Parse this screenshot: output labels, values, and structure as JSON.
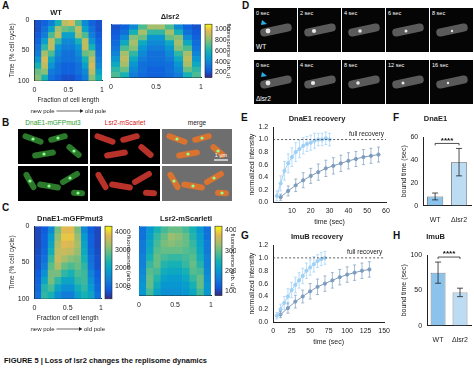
{
  "chart_data": [
    {
      "panel": "A",
      "type": "heatmap",
      "x": [
        0.05,
        0.15,
        0.25,
        0.35,
        0.45,
        0.55,
        0.65,
        0.75,
        0.85,
        0.95
      ],
      "y": [
        5,
        15,
        25,
        35,
        45,
        55,
        65,
        75,
        85,
        95
      ],
      "series": [
        {
          "name": "WT",
          "values": [
            [
              200,
              250,
              350,
              600,
              900,
              950,
              700,
              400,
              250,
              200
            ],
            [
              200,
              300,
              500,
              850,
              750,
              700,
              900,
              500,
              300,
              200
            ],
            [
              220,
              350,
              700,
              900,
              500,
              500,
              850,
              700,
              350,
              220
            ],
            [
              250,
              500,
              900,
              650,
              400,
              400,
              600,
              900,
              450,
              250
            ],
            [
              300,
              650,
              900,
              450,
              350,
              350,
              450,
              900,
              600,
              280
            ],
            [
              350,
              850,
              700,
              400,
              300,
              300,
              400,
              750,
              800,
              300
            ],
            [
              450,
              950,
              550,
              350,
              300,
              300,
              350,
              600,
              900,
              350
            ],
            [
              600,
              900,
              450,
              300,
              250,
              250,
              300,
              500,
              950,
              400
            ],
            [
              750,
              800,
              350,
              300,
              250,
              250,
              300,
              400,
              900,
              500
            ],
            [
              800,
              600,
              300,
              250,
              200,
              200,
              250,
              350,
              800,
              600
            ]
          ]
        },
        {
          "name": "Δlsr2",
          "values": [
            [
              200,
              250,
              400,
              700,
              850,
              850,
              700,
              400,
              250,
              200
            ],
            [
              220,
              300,
              600,
              850,
              650,
              650,
              850,
              600,
              300,
              220
            ],
            [
              250,
              400,
              800,
              750,
              450,
              450,
              750,
              800,
              400,
              250
            ],
            [
              280,
              550,
              850,
              550,
              400,
              400,
              550,
              850,
              550,
              280
            ],
            [
              320,
              700,
              800,
              450,
              350,
              350,
              450,
              800,
              700,
              320
            ],
            [
              380,
              850,
              650,
              400,
              300,
              300,
              400,
              650,
              850,
              380
            ],
            [
              450,
              900,
              550,
              350,
              300,
              300,
              350,
              550,
              900,
              450
            ],
            [
              550,
              850,
              450,
              300,
              280,
              280,
              300,
              450,
              850,
              550
            ],
            [
              650,
              750,
              400,
              300,
              250,
              250,
              300,
              400,
              750,
              650
            ],
            [
              700,
              600,
              350,
              280,
              250,
              250,
              280,
              350,
              600,
              700
            ]
          ]
        }
      ],
      "xlim": [
        0,
        1
      ],
      "xticks": [
        0,
        0.5,
        1
      ],
      "ylim": [
        0,
        100
      ],
      "yticks": [
        0,
        50,
        100
      ],
      "xlabel": "Fraction of cell length",
      "ylabel": "Time (% cell cycle)",
      "zlim": [
        100,
        1100
      ],
      "zticks": [
        200,
        400,
        600,
        800,
        1000
      ],
      "zlabel": "fluorescence (arb. u)",
      "annotations": [
        "new pole",
        "old pole"
      ]
    },
    {
      "panel": "C",
      "type": "heatmap",
      "x": [
        0.05,
        0.15,
        0.25,
        0.35,
        0.45,
        0.55,
        0.65,
        0.75,
        0.85,
        0.95
      ],
      "y": [
        5,
        15,
        25,
        35,
        45,
        55,
        65,
        75,
        85,
        95
      ],
      "series": [
        {
          "name": "DnaE1-mGFPmut3",
          "zlim": [
            300,
            4300
          ],
          "zticks": [
            1000,
            2000,
            3000,
            4000
          ],
          "values": [
            [
              600,
              800,
              1500,
              3000,
              3800,
              3800,
              3000,
              1500,
              800,
              600
            ],
            [
              600,
              900,
              1800,
              3200,
              3900,
              3900,
              3200,
              1800,
              900,
              600
            ],
            [
              600,
              900,
              2000,
              3400,
              3800,
              3700,
              3300,
              2000,
              900,
              600
            ],
            [
              650,
              1000,
              2200,
              3500,
              3600,
              3500,
              3200,
              2100,
              1000,
              650
            ],
            [
              700,
              1100,
              2500,
              3600,
              3300,
              3100,
              3000,
              2300,
              1100,
              700
            ],
            [
              700,
              1300,
              2800,
              3400,
              2900,
              2700,
              2900,
              2500,
              1200,
              700
            ],
            [
              800,
              1600,
              3000,
              3000,
              2500,
              2300,
              2700,
              2600,
              1400,
              800
            ],
            [
              900,
              2000,
              3000,
              2500,
              2000,
              2000,
              2500,
              2600,
              1600,
              900
            ],
            [
              1000,
              2400,
              2700,
              2000,
              1600,
              1600,
              2200,
              2500,
              1800,
              1000
            ],
            [
              1100,
              2500,
              2300,
              1600,
              1300,
              1300,
              1900,
              2300,
              2000,
              1100
            ]
          ]
        },
        {
          "name": "Lsr2-mScarletI",
          "zlim": [
            800,
            4200
          ],
          "zticks": [
            1000,
            2000,
            3000,
            4000
          ],
          "values": [
            [
              1500,
              2000,
              2500,
              2800,
              3000,
              3000,
              2800,
              2500,
              2000,
              1500
            ],
            [
              1500,
              2100,
              2700,
              3000,
              3300,
              3200,
              3000,
              2600,
              2100,
              1500
            ],
            [
              1600,
              2200,
              2800,
              3100,
              3200,
              3100,
              3000,
              2700,
              2200,
              1600
            ],
            [
              1600,
              2300,
              2900,
              3000,
              3000,
              3000,
              2900,
              2800,
              2300,
              1600
            ],
            [
              1700,
              2500,
              3000,
              2800,
              2700,
              2700,
              2800,
              2900,
              2400,
              1700
            ],
            [
              1700,
              2700,
              3000,
              2600,
              2500,
              2500,
              2700,
              3000,
              2600,
              1700
            ],
            [
              1800,
              2900,
              2800,
              2400,
              2300,
              2300,
              2500,
              2900,
              2800,
              1800
            ],
            [
              1900,
              3000,
              2600,
              2200,
              2100,
              2100,
              2300,
              2700,
              3000,
              1900
            ],
            [
              2000,
              3000,
              2400,
              2000,
              2000,
              2000,
              2100,
              2500,
              3000,
              2000
            ],
            [
              2000,
              2800,
              2200,
              1900,
              1900,
              1900,
              2000,
              2300,
              2800,
              2000
            ]
          ]
        }
      ],
      "xlim": [
        0,
        1
      ],
      "xticks": [
        0,
        0.5,
        1
      ],
      "ylim": [
        0,
        100
      ],
      "yticks": [
        0,
        50,
        100
      ],
      "xlabel": "Fraction of cell length",
      "ylabel": "Time (% cell cycle)",
      "zlabel": "fluorescence (arb. u)",
      "annotations": [
        "new pole",
        "old pole"
      ]
    },
    {
      "panel": "E",
      "type": "line",
      "title": "DnaE1 recovery",
      "series": [
        {
          "color": "#9fd0f5",
          "x": [
            2,
            4,
            6,
            8,
            10,
            12,
            14,
            16,
            18,
            20,
            22,
            24,
            26,
            28,
            30
          ],
          "values": [
            0.1,
            0.3,
            0.5,
            0.62,
            0.72,
            0.8,
            0.85,
            0.9,
            0.93,
            0.95,
            0.98,
            1.0,
            1.0,
            1.02,
            1.0
          ],
          "errors": [
            0.08,
            0.12,
            0.15,
            0.15,
            0.15,
            0.15,
            0.14,
            0.13,
            0.12,
            0.12,
            0.12,
            0.1,
            0.1,
            0.1,
            0.1
          ]
        },
        {
          "color": "#7d9cbd",
          "x": [
            4,
            8,
            12,
            16,
            20,
            24,
            28,
            32,
            36,
            40,
            44,
            48,
            52,
            56
          ],
          "values": [
            0.08,
            0.18,
            0.27,
            0.35,
            0.42,
            0.48,
            0.54,
            0.58,
            0.62,
            0.66,
            0.69,
            0.72,
            0.74,
            0.76
          ],
          "errors": [
            0.05,
            0.08,
            0.1,
            0.12,
            0.12,
            0.13,
            0.13,
            0.13,
            0.13,
            0.13,
            0.12,
            0.12,
            0.12,
            0.12
          ]
        }
      ],
      "xlim": [
        0,
        60
      ],
      "xticks": [
        10,
        20,
        30,
        40,
        50,
        60
      ],
      "ylim": [
        0,
        1.2
      ],
      "yticks": [
        {
          "value": 0,
          "label": "0.0"
        },
        0.2,
        0.4,
        0.6,
        0.8,
        {
          "value": 1,
          "label": "1.0"
        },
        1.2
      ],
      "xlabel": "time (sec)",
      "ylabel": "normalized intensity",
      "reference_line": {
        "label": "full recovery",
        "value": 1
      },
      "grid": false
    },
    {
      "panel": "F",
      "type": "bar",
      "title": "DnaE1",
      "categories": [
        "WT",
        "Δlsr2"
      ],
      "values": [
        8,
        38
      ],
      "errors": [
        3,
        12
      ],
      "colors": [
        "#8cc3ec",
        "#bcdcf4"
      ],
      "ylim": [
        0,
        60
      ],
      "yticks": [
        0,
        20,
        40,
        60
      ],
      "ylabel": "bound time (sec)",
      "annotations": [
        "****"
      ],
      "grid": false
    },
    {
      "panel": "G",
      "type": "line",
      "title": "ImuB recovery",
      "series": [
        {
          "color": "#9fd0f5",
          "x": [
            5,
            10,
            15,
            20,
            25,
            30,
            35,
            40,
            45,
            50,
            55,
            60,
            65,
            70
          ],
          "values": [
            0.1,
            0.2,
            0.3,
            0.4,
            0.5,
            0.58,
            0.65,
            0.72,
            0.8,
            0.85,
            0.9,
            0.95,
            0.98,
            1.0
          ],
          "errors": [
            0.05,
            0.08,
            0.1,
            0.12,
            0.12,
            0.12,
            0.12,
            0.12,
            0.12,
            0.12,
            0.12,
            0.1,
            0.1,
            0.1
          ]
        },
        {
          "color": "#7d9cbd",
          "x": [
            10,
            20,
            30,
            40,
            50,
            60,
            70,
            80,
            90,
            100,
            110,
            120,
            130
          ],
          "values": [
            0.12,
            0.22,
            0.32,
            0.4,
            0.48,
            0.55,
            0.6,
            0.65,
            0.7,
            0.74,
            0.77,
            0.8,
            0.82
          ],
          "errors": [
            0.05,
            0.08,
            0.1,
            0.1,
            0.12,
            0.12,
            0.12,
            0.12,
            0.12,
            0.12,
            0.12,
            0.12,
            0.12
          ]
        }
      ],
      "xlim": [
        0,
        150
      ],
      "xticks": [
        0,
        25,
        50,
        75,
        100,
        125,
        150
      ],
      "ylim": [
        0,
        1.2
      ],
      "yticks": [
        {
          "value": 0,
          "label": "0.0"
        },
        0.2,
        0.4,
        0.6,
        0.8,
        {
          "value": 1,
          "label": "1.0"
        },
        1.2
      ],
      "xlabel": "time (sec)",
      "ylabel": "normalized intensity",
      "reference_line": {
        "label": "full recovery",
        "value": 1
      },
      "grid": false
    },
    {
      "panel": "H",
      "type": "bar",
      "title": "ImuB",
      "categories": [
        "WT",
        "Δlsr2"
      ],
      "values": [
        75,
        47
      ],
      "errors": [
        15,
        6
      ],
      "colors": [
        "#8cc3ec",
        "#bcdcf4"
      ],
      "ylim": [
        0,
        100
      ],
      "yticks": [
        0,
        50,
        100
      ],
      "ylabel": "bound time (sec)",
      "annotations": [
        "****"
      ],
      "grid": false
    }
  ],
  "images": [
    {
      "panel": "B",
      "columns": [
        "DnaE1-mGFPmut3",
        "Lsr2-mScarlet",
        "merge"
      ],
      "scale_bar": "1 µm"
    },
    {
      "panel": "D",
      "rows": [
        {
          "label": "WT",
          "frames": [
            "0 sec",
            "2 sec",
            "4 sec",
            "6 sec",
            "8 sec"
          ]
        },
        {
          "label": "Δlsr2",
          "frames": [
            "0 sec",
            "4 sec",
            "8 sec",
            "12 sec",
            "16 sec"
          ]
        }
      ]
    }
  ],
  "caption": "FIGURE 5 | Loss of lsr2 changes the replisome dynamics"
}
